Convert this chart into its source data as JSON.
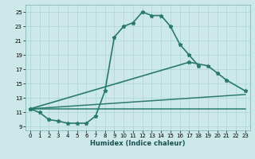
{
  "xlabel": "Humidex (Indice chaleur)",
  "bg_color": "#cce8e8",
  "line_color": "#2a7a6a",
  "grid_color": "#aad4d4",
  "xlim": [
    -0.5,
    23.5
  ],
  "ylim": [
    8.5,
    26.0
  ],
  "xticks": [
    0,
    1,
    2,
    3,
    4,
    5,
    6,
    7,
    8,
    9,
    10,
    11,
    12,
    13,
    14,
    15,
    16,
    17,
    18,
    19,
    20,
    21,
    22,
    23
  ],
  "yticks": [
    9,
    11,
    13,
    15,
    17,
    19,
    21,
    23,
    25
  ],
  "line1_x": [
    0,
    1,
    2,
    3,
    4,
    5,
    6,
    7,
    8,
    9,
    10,
    11,
    12,
    13,
    14,
    15,
    16,
    17,
    18
  ],
  "line1_y": [
    11.5,
    11.0,
    10.0,
    9.8,
    9.5,
    9.5,
    9.5,
    10.5,
    14.0,
    21.5,
    23.0,
    23.5,
    25.0,
    24.5,
    24.5,
    23.0,
    20.5,
    19.0,
    17.5
  ],
  "line2_x": [
    0,
    17,
    19,
    20,
    21,
    23
  ],
  "line2_y": [
    11.5,
    18.0,
    17.5,
    16.5,
    15.5,
    14.0
  ],
  "line3_x": [
    0,
    23
  ],
  "line3_y": [
    11.5,
    13.5
  ],
  "line4_x": [
    0,
    23
  ],
  "line4_y": [
    11.5,
    11.5
  ],
  "xlabel_fontsize": 6.0,
  "tick_fontsize": 5.0,
  "linewidth": 1.2,
  "markersize": 3.5
}
